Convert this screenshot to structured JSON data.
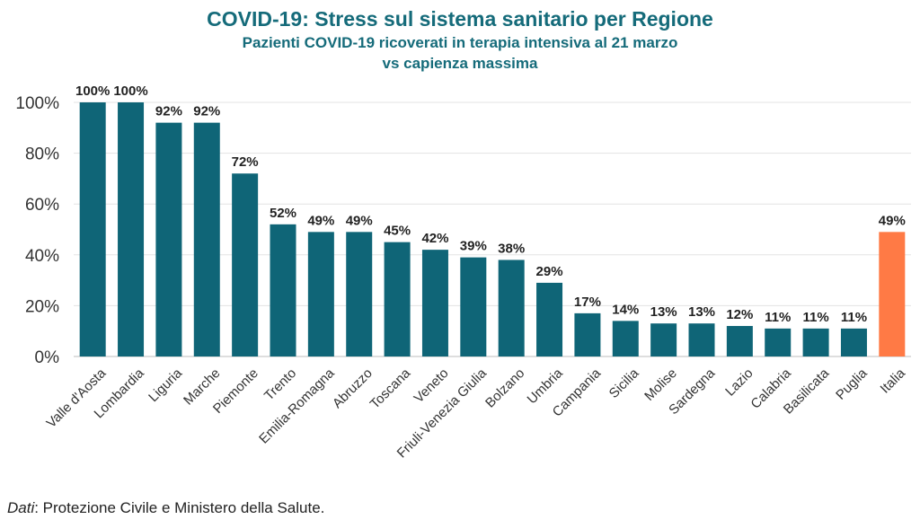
{
  "title": "COVID-19: Stress sul sistema sanitario per Regione",
  "subtitle_line1": "Pazienti COVID-19 ricoverati in terapia intensiva al 21 marzo",
  "subtitle_line2": "vs capienza massima",
  "source_label": "Dati",
  "source_text": ": Protezione Civile e Ministero della Salute.",
  "colors": {
    "regions": "#0F6577",
    "italy": "#FF7A45",
    "title": "#156B7A"
  },
  "chart_data": {
    "type": "bar",
    "title": "COVID-19: Stress sul sistema sanitario per Regione",
    "subtitle": "Pazienti COVID-19 ricoverati in terapia intensiva al 21 marzo vs capienza massima",
    "xlabel": "",
    "ylabel": "",
    "ylim": [
      0,
      100
    ],
    "yticks": [
      0,
      20,
      40,
      60,
      80,
      100
    ],
    "ytick_labels": [
      "0%",
      "20%",
      "40%",
      "60%",
      "80%",
      "100%"
    ],
    "grid": true,
    "categories": [
      "Valle d'Aosta",
      "Lombardia",
      "Liguria",
      "Marche",
      "Piemonte",
      "Trento",
      "Emilia-Romagna",
      "Abruzzo",
      "Toscana",
      "Veneto",
      "Friuli-Venezia Giulia",
      "Bolzano",
      "Umbria",
      "Campania",
      "Sicilia",
      "Molise",
      "Sardegna",
      "Lazio",
      "Calabria",
      "Basilicata",
      "Puglia",
      "Italia"
    ],
    "values": [
      100,
      100,
      92,
      92,
      72,
      52,
      49,
      49,
      45,
      42,
      39,
      38,
      29,
      17,
      14,
      13,
      13,
      12,
      11,
      11,
      11,
      49
    ],
    "data_labels": [
      "100%",
      "100%",
      "92%",
      "92%",
      "72%",
      "52%",
      "49%",
      "49%",
      "45%",
      "42%",
      "39%",
      "38%",
      "29%",
      "17%",
      "14%",
      "13%",
      "13%",
      "12%",
      "11%",
      "11%",
      "11%",
      "49%"
    ],
    "highlight_category": "Italia"
  }
}
